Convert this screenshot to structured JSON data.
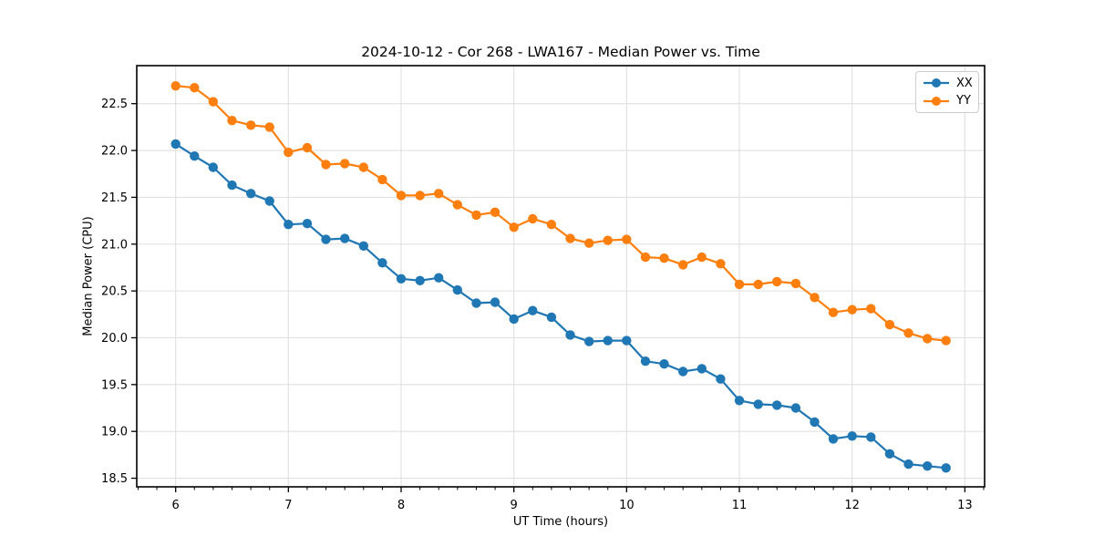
{
  "chart_data": {
    "type": "line",
    "title": "2024-10-12 - Cor 268 - LWA167 - Median Power vs. Time",
    "xlabel": "UT Time (hours)",
    "ylabel": "Median Power (CPU)",
    "xlim": [
      5.655,
      13.175
    ],
    "ylim": [
      18.408,
      22.906
    ],
    "xticks": [
      6,
      7,
      8,
      9,
      10,
      11,
      12,
      13
    ],
    "yticks": [
      18.5,
      19.0,
      19.5,
      20.0,
      20.5,
      21.0,
      21.5,
      22.0,
      22.5
    ],
    "minor_xtick_step": 0.1667,
    "grid": true,
    "grid_color": "#e0e0e0",
    "legend_position": "upper right",
    "x": [
      6.0,
      6.167,
      6.333,
      6.5,
      6.667,
      6.833,
      7.0,
      7.167,
      7.333,
      7.5,
      7.667,
      7.833,
      8.0,
      8.167,
      8.333,
      8.5,
      8.667,
      8.833,
      9.0,
      9.167,
      9.333,
      9.5,
      9.667,
      9.833,
      10.0,
      10.167,
      10.333,
      10.5,
      10.667,
      10.833,
      11.0,
      11.167,
      11.333,
      11.5,
      11.667,
      11.833,
      12.0,
      12.167,
      12.333,
      12.5,
      12.667,
      12.833
    ],
    "series": [
      {
        "name": "XX",
        "color": "#1f77b4",
        "values": [
          22.07,
          21.94,
          21.82,
          21.63,
          21.54,
          21.46,
          21.21,
          21.22,
          21.05,
          21.06,
          20.98,
          20.8,
          20.63,
          20.61,
          20.64,
          20.51,
          20.37,
          20.38,
          20.2,
          20.29,
          20.22,
          20.03,
          19.96,
          19.97,
          19.97,
          19.75,
          19.72,
          19.64,
          19.67,
          19.56,
          19.33,
          19.29,
          19.28,
          19.25,
          19.1,
          18.92,
          18.95,
          18.94,
          18.76,
          18.65,
          18.63,
          18.61
        ]
      },
      {
        "name": "YY",
        "color": "#ff7f0e",
        "values": [
          22.69,
          22.67,
          22.52,
          22.32,
          22.27,
          22.25,
          21.98,
          22.03,
          21.85,
          21.86,
          21.82,
          21.69,
          21.52,
          21.52,
          21.54,
          21.42,
          21.31,
          21.34,
          21.18,
          21.27,
          21.21,
          21.06,
          21.01,
          21.04,
          21.05,
          20.86,
          20.85,
          20.78,
          20.86,
          20.79,
          20.57,
          20.57,
          20.6,
          20.58,
          20.43,
          20.27,
          20.3,
          20.31,
          20.14,
          20.05,
          19.99,
          19.97
        ]
      }
    ]
  }
}
